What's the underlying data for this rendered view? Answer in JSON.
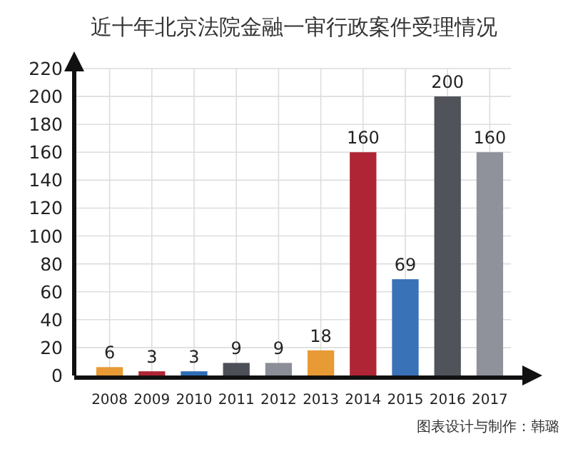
{
  "chart_data": {
    "type": "bar",
    "title": "近十年北京法院金融一审行政案件受理情况",
    "categories": [
      "2008",
      "2009",
      "2010",
      "2011",
      "2012",
      "2013",
      "2014",
      "2015",
      "2016",
      "2017"
    ],
    "values": [
      6,
      3,
      3,
      9,
      9,
      18,
      160,
      69,
      200,
      160
    ],
    "colors": [
      "#e89a35",
      "#b02535",
      "#2f6db5",
      "#4d4f57",
      "#8b8e96",
      "#e89a35",
      "#b02535",
      "#3a72b8",
      "#51535b",
      "#8f929b"
    ],
    "ylim": [
      0,
      220
    ],
    "yticks": [
      0,
      20,
      40,
      60,
      80,
      100,
      120,
      140,
      160,
      180,
      200,
      220
    ],
    "grid": true,
    "data_labels": true,
    "annotations": [
      "图表设计与制作：韩璐"
    ]
  }
}
